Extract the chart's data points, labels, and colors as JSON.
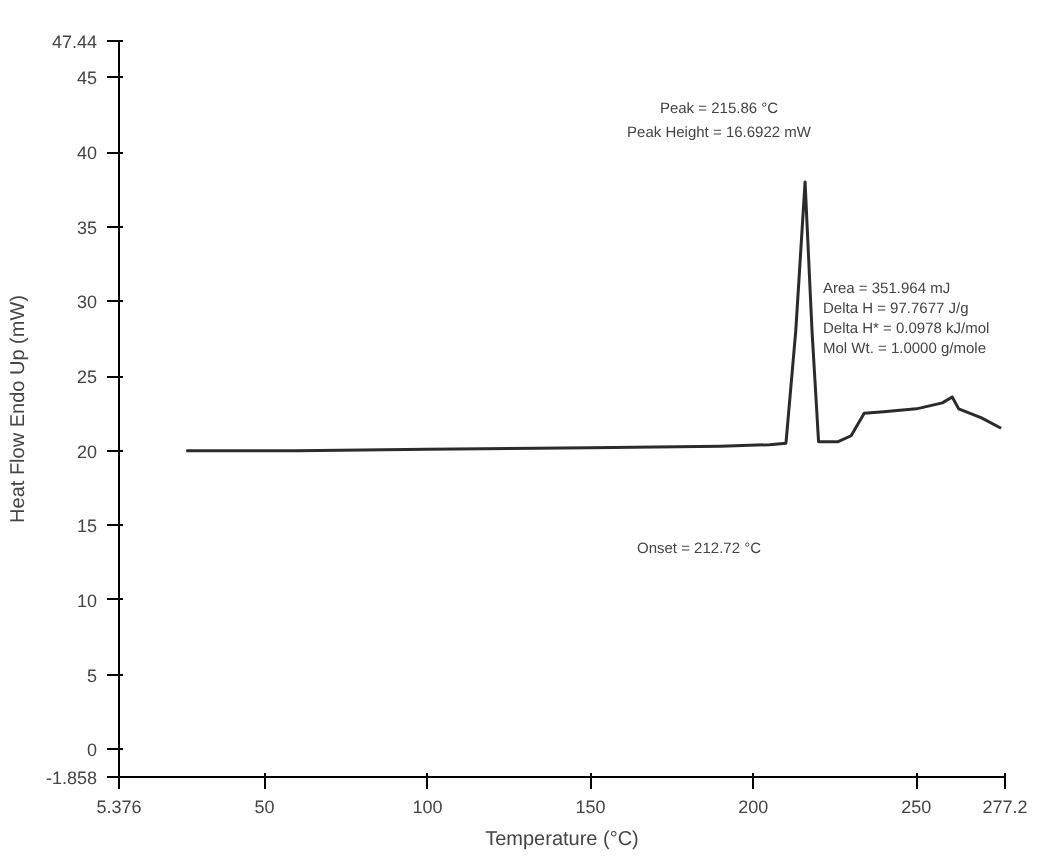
{
  "chart_data": {
    "type": "line",
    "xlabel": "Temperature (°C)",
    "ylabel": "Heat Flow Endo Up (mW)",
    "x": [
      26,
      60,
      100,
      150,
      190,
      205,
      210,
      213,
      215.86,
      218,
      220,
      226,
      230,
      234,
      240,
      250,
      258,
      261,
      263,
      270,
      276
    ],
    "series": [
      {
        "color": "#2b2b2b",
        "values": [
          20,
          20,
          20.1,
          20.2,
          20.3,
          20.4,
          20.5,
          28,
          38,
          28,
          20.6,
          20.6,
          21,
          22.5,
          22.6,
          22.8,
          23.2,
          23.6,
          22.8,
          22.2,
          21.5
        ]
      }
    ],
    "xlim": [
      5.376,
      277.2
    ],
    "xticks": [
      {
        "value": 5.376,
        "label": "5.376"
      },
      50,
      100,
      150,
      200,
      250,
      {
        "value": 277.2,
        "label": "277.2"
      }
    ],
    "ylim": [
      -1.858,
      47.44
    ],
    "yticks": [
      {
        "value": -1.858,
        "label": "-1.858"
      },
      0,
      5,
      10,
      15,
      20,
      25,
      30,
      35,
      40,
      45,
      {
        "value": 47.44,
        "label": "47.44"
      }
    ],
    "grid": false,
    "annotations": [
      "Peak = 215.86 °C",
      "Peak Height = 16.6922 mW",
      "Area = 351.964 mJ",
      "Delta H = 97.7677 J/g",
      "Delta H* = 0.0978 kJ/mol",
      "Mol Wt. = 1.0000 g/mole",
      "Onset = 212.72 °C"
    ]
  }
}
